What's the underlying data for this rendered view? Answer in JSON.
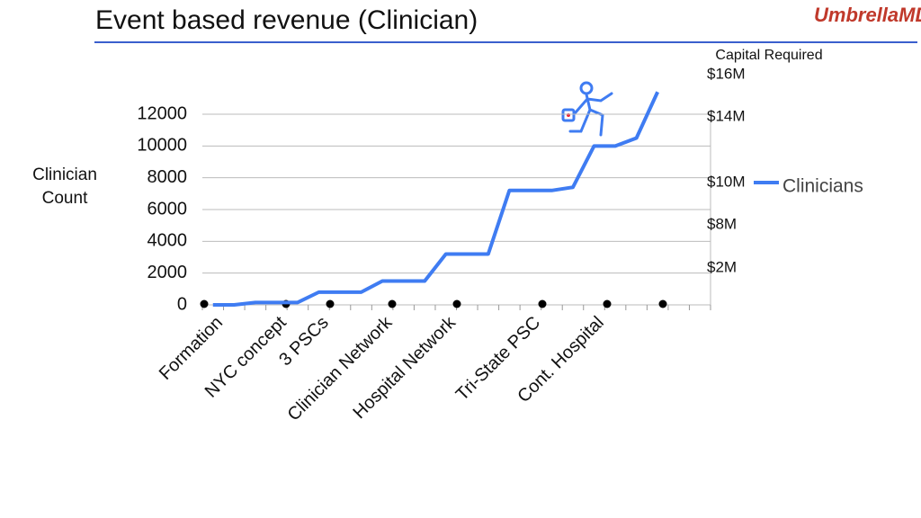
{
  "header": {
    "title": "Event based revenue (Clinician)",
    "logo": "UmbrellaMD."
  },
  "chart_data": {
    "type": "line",
    "y_label": "Clinician Count",
    "categories": [
      "Formation",
      null,
      null,
      "NYC concept",
      null,
      "3 PSCs",
      null,
      null,
      "Clinician Network",
      null,
      null,
      "Hospital Network",
      null,
      null,
      null,
      "Tri-State PSC",
      null,
      null,
      "Cont. Hospital",
      null,
      null,
      null,
      null,
      null
    ],
    "series": [
      {
        "name": "Clinicians",
        "color": "#3f7cf2",
        "values": [
          0,
          0,
          150,
          150,
          150,
          800,
          800,
          800,
          1500,
          1500,
          1500,
          3200,
          3200,
          3200,
          7200,
          7200,
          7200,
          7400,
          10000,
          10000,
          10500,
          13400,
          null,
          null
        ]
      }
    ],
    "ylim": [
      0,
      12000
    ],
    "yticks": [
      0,
      2000,
      4000,
      6000,
      8000,
      10000,
      12000
    ],
    "grid": true,
    "capital_title": "Capital Required",
    "capital_labels": [
      "$16M",
      "$14M",
      "$10M",
      "$8M",
      "$2M"
    ]
  }
}
